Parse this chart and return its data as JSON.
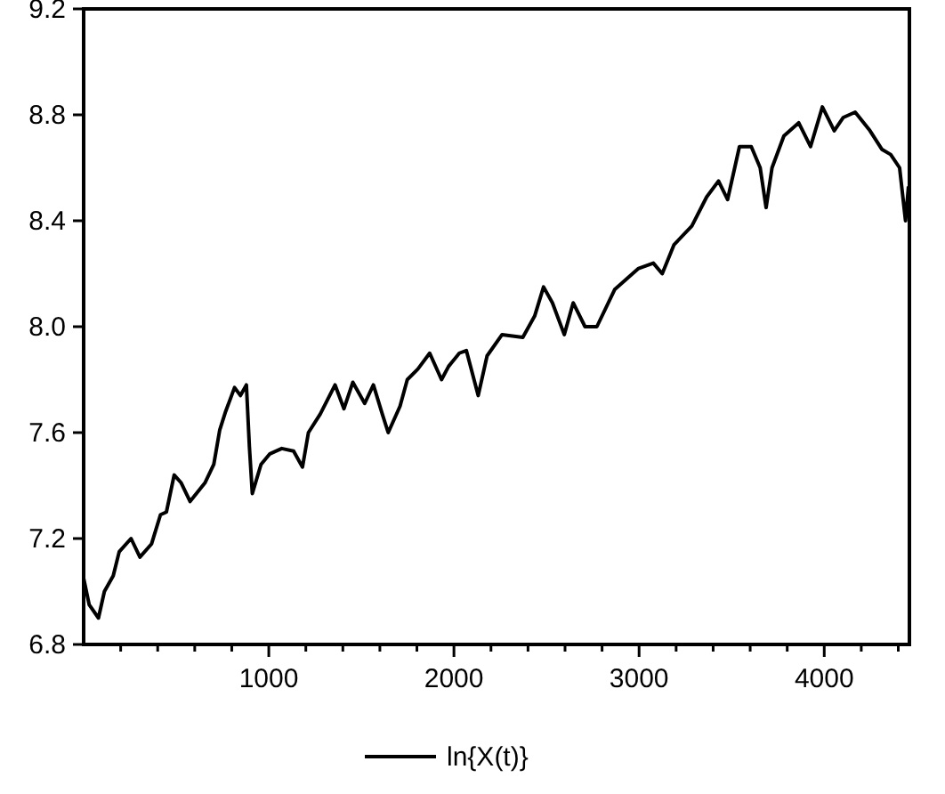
{
  "chart_data": {
    "type": "line",
    "legend": "bottom",
    "xlim": [
      0,
      4460
    ],
    "ylim": [
      6.8,
      9.2
    ],
    "xticks": [
      {
        "value": 200,
        "label": null
      },
      {
        "value": 400,
        "label": null
      },
      {
        "value": 600,
        "label": null
      },
      {
        "value": 800,
        "label": null
      },
      1000,
      {
        "value": 1200,
        "label": null
      },
      {
        "value": 1400,
        "label": null
      },
      {
        "value": 1600,
        "label": null
      },
      {
        "value": 1800,
        "label": null
      },
      2000,
      {
        "value": 2200,
        "label": null
      },
      {
        "value": 2400,
        "label": null
      },
      {
        "value": 2600,
        "label": null
      },
      {
        "value": 2800,
        "label": null
      },
      3000,
      {
        "value": 3200,
        "label": null
      },
      {
        "value": 3400,
        "label": null
      },
      {
        "value": 3600,
        "label": null
      },
      {
        "value": 3800,
        "label": null
      },
      4000,
      {
        "value": 4200,
        "label": null
      },
      {
        "value": 4400,
        "label": null
      }
    ],
    "yticks": [
      6.8,
      7.2,
      7.6,
      {
        "value": 8,
        "label": "8.0"
      },
      8.4,
      8.8,
      9.2
    ],
    "series": [
      {
        "name": "ln{X(t)}",
        "color": "#000000",
        "x": [
          0,
          30,
          80,
          112,
          160,
          192,
          256,
          304,
          367,
          415,
          447,
          489,
          527,
          575,
          655,
          703,
          735,
          767,
          815,
          847,
          879,
          895,
          911,
          958,
          1006,
          1070,
          1134,
          1182,
          1214,
          1278,
          1358,
          1406,
          1454,
          1518,
          1565,
          1613,
          1645,
          1709,
          1748,
          1805,
          1869,
          1933,
          1971,
          2029,
          2067,
          2131,
          2179,
          2260,
          2372,
          2436,
          2484,
          2532,
          2596,
          2644,
          2708,
          2772,
          2868,
          2997,
          3077,
          3125,
          3189,
          3285,
          3365,
          3429,
          3478,
          3542,
          3606,
          3654,
          3686,
          3718,
          3782,
          3862,
          3926,
          3990,
          4054,
          4103,
          4167,
          4247,
          4311,
          4359,
          4407,
          4439,
          4455
        ],
        "values": [
          7.05,
          6.95,
          6.9,
          7.0,
          7.06,
          7.15,
          7.2,
          7.13,
          7.18,
          7.29,
          7.3,
          7.44,
          7.41,
          7.34,
          7.41,
          7.48,
          7.61,
          7.68,
          7.77,
          7.74,
          7.78,
          7.55,
          7.37,
          7.48,
          7.52,
          7.54,
          7.53,
          7.47,
          7.6,
          7.67,
          7.78,
          7.69,
          7.79,
          7.71,
          7.78,
          7.67,
          7.6,
          7.7,
          7.8,
          7.84,
          7.9,
          7.8,
          7.85,
          7.9,
          7.91,
          7.74,
          7.89,
          7.97,
          7.96,
          8.04,
          8.15,
          8.09,
          7.97,
          8.09,
          8.0,
          8.0,
          8.14,
          8.22,
          8.24,
          8.2,
          8.31,
          8.38,
          8.49,
          8.55,
          8.48,
          8.68,
          8.68,
          8.6,
          8.45,
          8.6,
          8.72,
          8.77,
          8.68,
          8.83,
          8.74,
          8.79,
          8.81,
          8.74,
          8.67,
          8.65,
          8.6,
          8.4,
          8.53
        ]
      }
    ]
  }
}
